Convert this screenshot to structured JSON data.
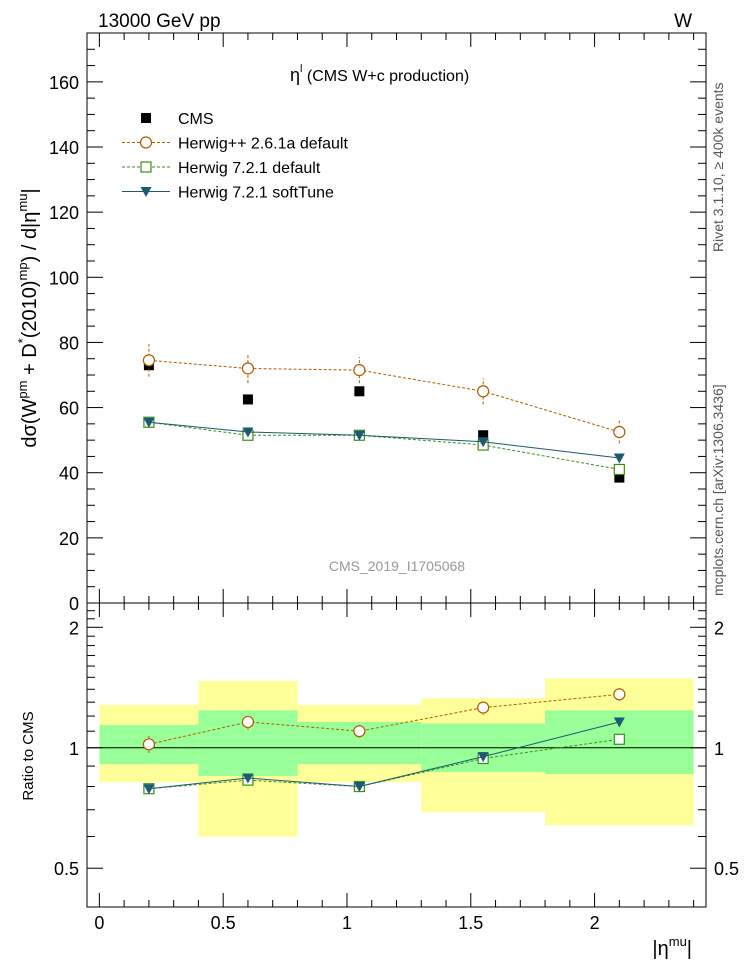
{
  "header": {
    "energy_label": "13000 GeV pp",
    "process_label": "W",
    "side_label_rivet": "Rivet 3.1.10, ≥ 400k events",
    "side_label_source": "mcplots.cern.ch [arXiv:1306.3436]",
    "analysis_id": "CMS_2019_I1705068"
  },
  "chart_data": [
    {
      "type": "scatter",
      "title": "η^l (CMS W+c production)",
      "ylabel": "dσ(W^pm + D^*(2010)^mp) / d|η^mu|",
      "ylim": [
        0,
        175
      ],
      "yticks": [
        0,
        20,
        40,
        60,
        80,
        100,
        120,
        140,
        160
      ],
      "xlim": [
        -0.05,
        2.45
      ],
      "legend_position": "top-left",
      "series": [
        {
          "name": "CMS",
          "color": "#000000",
          "marker": "square-filled",
          "x": [
            0.2,
            0.6,
            1.05,
            1.55,
            2.1
          ],
          "y": [
            73,
            62.5,
            65,
            51.5,
            38.5
          ],
          "err": [
            0,
            0,
            0,
            0,
            0
          ]
        },
        {
          "name": "Herwig++ 2.6.1a default",
          "color": "#b35900",
          "marker": "circle-open",
          "dash": "3,2",
          "x": [
            0.2,
            0.6,
            1.05,
            1.55,
            2.1
          ],
          "y": [
            74.5,
            72,
            71.5,
            65,
            52.5
          ],
          "err": [
            5,
            4.5,
            4,
            4,
            3.5
          ]
        },
        {
          "name": "Herwig 7.2.1 default",
          "color": "#3a8f1a",
          "marker": "square-open",
          "dash": "3,2",
          "x": [
            0.2,
            0.6,
            1.05,
            1.55,
            2.1
          ],
          "y": [
            55.5,
            51.5,
            51.5,
            48.5,
            41
          ],
          "err": [
            1.5,
            1.5,
            1.5,
            1.5,
            1.5
          ]
        },
        {
          "name": "Herwig 7.2.1 softTune",
          "color": "#1c5a72",
          "marker": "triangle-down-filled",
          "x": [
            0.2,
            0.6,
            1.05,
            1.55,
            2.1
          ],
          "y": [
            55.5,
            52.5,
            51.5,
            49.5,
            44.5
          ],
          "err": [
            1,
            1,
            1,
            1,
            1
          ]
        }
      ]
    },
    {
      "type": "scatter",
      "ylabel": "Ratio to CMS",
      "xlabel": "|η^mu|",
      "ylim": [
        0.4,
        2.3
      ],
      "yticks": [
        0.5,
        1,
        2
      ],
      "xticks": [
        0,
        0.5,
        1,
        1.5,
        2
      ],
      "xlim": [
        -0.05,
        2.45
      ],
      "bands": {
        "bins": [
          [
            0.0,
            0.4
          ],
          [
            0.4,
            0.8
          ],
          [
            0.8,
            1.3
          ],
          [
            1.3,
            1.8
          ],
          [
            1.8,
            2.4
          ]
        ],
        "stat": [
          [
            0.91,
            1.14
          ],
          [
            0.85,
            1.24
          ],
          [
            0.91,
            1.16
          ],
          [
            0.87,
            1.15
          ],
          [
            0.86,
            1.24
          ]
        ],
        "total": [
          [
            0.82,
            1.28
          ],
          [
            0.6,
            1.47
          ],
          [
            0.82,
            1.28
          ],
          [
            0.69,
            1.33
          ],
          [
            0.64,
            1.49
          ]
        ],
        "stat_color": "#99ff99",
        "total_color": "#ffff99"
      },
      "series": [
        {
          "name": "Herwig++ 2.6.1a default",
          "color": "#b35900",
          "marker": "circle-open",
          "dash": "3,2",
          "x": [
            0.2,
            0.6,
            1.05,
            1.55,
            2.1
          ],
          "y": [
            1.02,
            1.16,
            1.1,
            1.26,
            1.36
          ],
          "err": [
            0.05,
            0.05,
            0.04,
            0.05,
            0.05
          ]
        },
        {
          "name": "Herwig 7.2.1 default",
          "color": "#3a8f1a",
          "marker": "square-open",
          "dash": "3,2",
          "x": [
            0.2,
            0.6,
            1.05,
            1.55,
            2.1
          ],
          "y": [
            0.79,
            0.83,
            0.8,
            0.94,
            1.05
          ],
          "err": [
            0.02,
            0.02,
            0.02,
            0.02,
            0.02
          ]
        },
        {
          "name": "Herwig 7.2.1 softTune",
          "color": "#1c5a72",
          "marker": "triangle-down-filled",
          "x": [
            0.2,
            0.6,
            1.05,
            1.55,
            2.1
          ],
          "y": [
            0.79,
            0.84,
            0.8,
            0.95,
            1.16
          ],
          "err": [
            0.01,
            0.01,
            0.01,
            0.01,
            0.01
          ]
        }
      ]
    }
  ]
}
